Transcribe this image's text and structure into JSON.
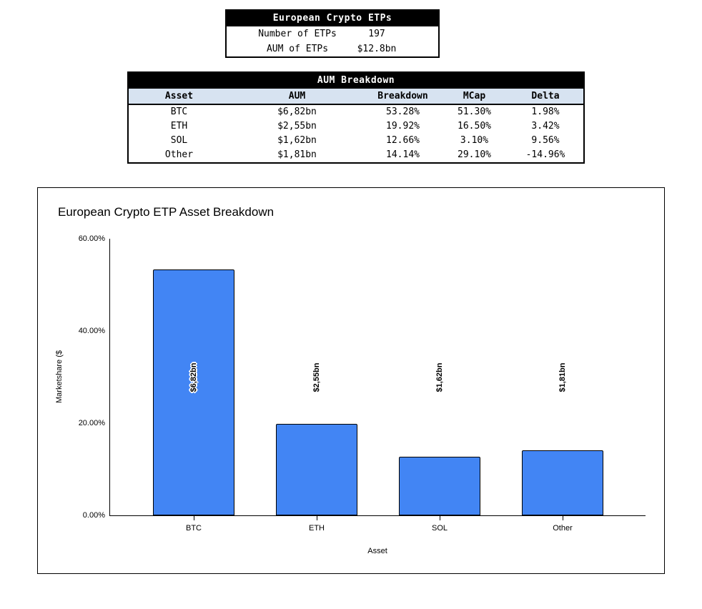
{
  "summary_table": {
    "title": "European Crypto ETPs",
    "rows": [
      {
        "label": "Number of ETPs",
        "value": "197"
      },
      {
        "label": "AUM of ETPs",
        "value": "$12.8bn"
      }
    ]
  },
  "breakdown_table": {
    "title": "AUM Breakdown",
    "columns": [
      "Asset",
      "AUM",
      "Breakdown",
      "MCap",
      "Delta"
    ],
    "rows": [
      [
        "BTC",
        "$6,82bn",
        "53.28%",
        "51.30%",
        "1.98%"
      ],
      [
        "ETH",
        "$2,55bn",
        "19.92%",
        "16.50%",
        "3.42%"
      ],
      [
        "SOL",
        "$1,62bn",
        "12.66%",
        "3.10%",
        "9.56%"
      ],
      [
        "Other",
        "$1,81bn",
        "14.14%",
        "29.10%",
        "-14.96%"
      ]
    ]
  },
  "colors": {
    "bar_fill": "#4285f4",
    "bar_border": "#000000",
    "table_header_bg": "#d7e3f1",
    "table_title_bg": "#000000",
    "table_title_text": "#ffffff"
  },
  "chart_data": {
    "type": "bar",
    "title": "European Crypto ETP Asset Breakdown",
    "xlabel": "Asset",
    "ylabel": "Marketshare ($",
    "categories": [
      "BTC",
      "ETH",
      "SOL",
      "Other"
    ],
    "values": [
      53.28,
      19.92,
      12.66,
      14.14
    ],
    "bar_labels": [
      "$6,82bn",
      "$2,55bn",
      "$1,62bn",
      "$1,81bn"
    ],
    "ylim": [
      0,
      60
    ],
    "yticks": [
      {
        "value": 0,
        "label": "0.00%"
      },
      {
        "value": 20,
        "label": "20.00%"
      },
      {
        "value": 40,
        "label": "40.00%"
      },
      {
        "value": 60,
        "label": "60.00%"
      }
    ],
    "grid": false,
    "legend": false
  }
}
